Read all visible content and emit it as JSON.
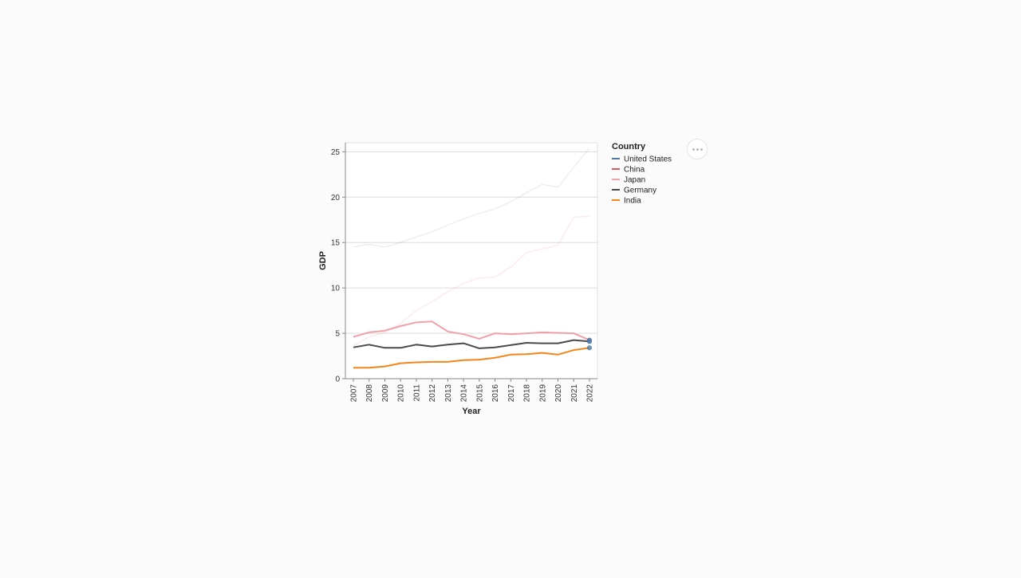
{
  "chart_data": {
    "type": "line",
    "title": "",
    "xlabel": "Year",
    "ylabel": "GDP",
    "x": [
      2007,
      2008,
      2009,
      2010,
      2011,
      2012,
      2013,
      2014,
      2015,
      2016,
      2017,
      2018,
      2019,
      2020,
      2021,
      2022
    ],
    "ylim": [
      0,
      26
    ],
    "y_ticks": [
      0,
      5,
      10,
      15,
      20,
      25
    ],
    "grid": true,
    "legend": {
      "title": "Country",
      "placement": "right"
    },
    "series": [
      {
        "name": "United States",
        "color": "#4c78a8",
        "emphasis": "faded",
        "values": [
          14.5,
          14.8,
          14.5,
          15.0,
          15.6,
          16.2,
          16.9,
          17.6,
          18.2,
          18.7,
          19.5,
          20.5,
          21.4,
          21.1,
          23.3,
          25.4
        ]
      },
      {
        "name": "China",
        "color": "#e45756",
        "emphasis": "faded",
        "values": [
          3.6,
          4.6,
          5.1,
          6.1,
          7.5,
          8.5,
          9.6,
          10.5,
          11.1,
          11.2,
          12.3,
          13.9,
          14.3,
          14.7,
          17.8,
          17.9
        ]
      },
      {
        "name": "Japan",
        "color": "#f2a0a8",
        "emphasis": "highlighted",
        "values": [
          4.6,
          5.1,
          5.3,
          5.8,
          6.2,
          6.3,
          5.2,
          4.9,
          4.4,
          5.0,
          4.9,
          5.0,
          5.1,
          5.05,
          5.0,
          4.25
        ]
      },
      {
        "name": "Germany",
        "color": "#4a4a4a",
        "emphasis": "highlighted",
        "values": [
          3.45,
          3.75,
          3.4,
          3.4,
          3.75,
          3.55,
          3.75,
          3.9,
          3.35,
          3.45,
          3.7,
          3.95,
          3.9,
          3.9,
          4.25,
          4.1
        ]
      },
      {
        "name": "India",
        "color": "#f58518",
        "emphasis": "highlighted",
        "values": [
          1.2,
          1.2,
          1.35,
          1.7,
          1.8,
          1.85,
          1.85,
          2.05,
          2.1,
          2.3,
          2.65,
          2.7,
          2.85,
          2.65,
          3.15,
          3.4
        ]
      }
    ]
  }
}
